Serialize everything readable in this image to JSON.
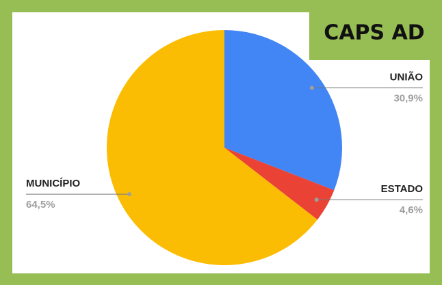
{
  "chart_data": {
    "type": "pie",
    "title": "CAPS AD",
    "categories": [
      "UNIÃO",
      "ESTADO",
      "MUNICÍPIO"
    ],
    "values": [
      30.9,
      4.6,
      64.5
    ],
    "value_labels": [
      "30,9%",
      "4,6%",
      "64,5%"
    ],
    "colors": [
      "#4285f4",
      "#ea4335",
      "#fbbc04"
    ]
  }
}
